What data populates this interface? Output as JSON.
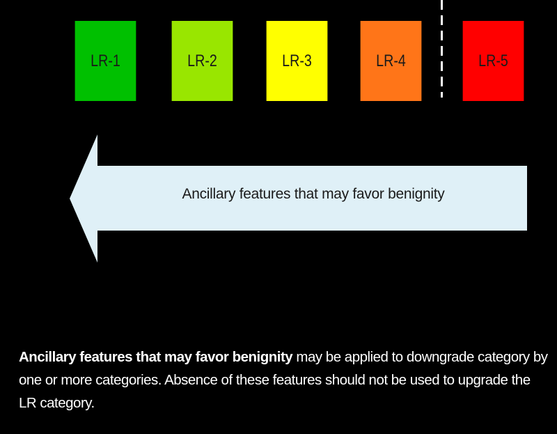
{
  "categories": [
    {
      "label": "LR-1",
      "color": "#00c000"
    },
    {
      "label": "LR-2",
      "color": "#99e600"
    },
    {
      "label": "LR-3",
      "color": "#ffff00"
    },
    {
      "label": "LR-4",
      "color": "#ff7518"
    },
    {
      "label": "LR-5",
      "color": "#ff0000"
    }
  ],
  "arrow": {
    "label": "Ancillary features that may favor benignity",
    "direction": "left",
    "fill": "#dff0f7"
  },
  "caption": {
    "bold": "Ancillary features that may favor benignity",
    "rest": " may be applied to downgrade category by one or more categories. Absence of these features should not be used to upgrade the LR category."
  },
  "colors": {
    "background": "#000000",
    "divider": "#ffffff"
  }
}
